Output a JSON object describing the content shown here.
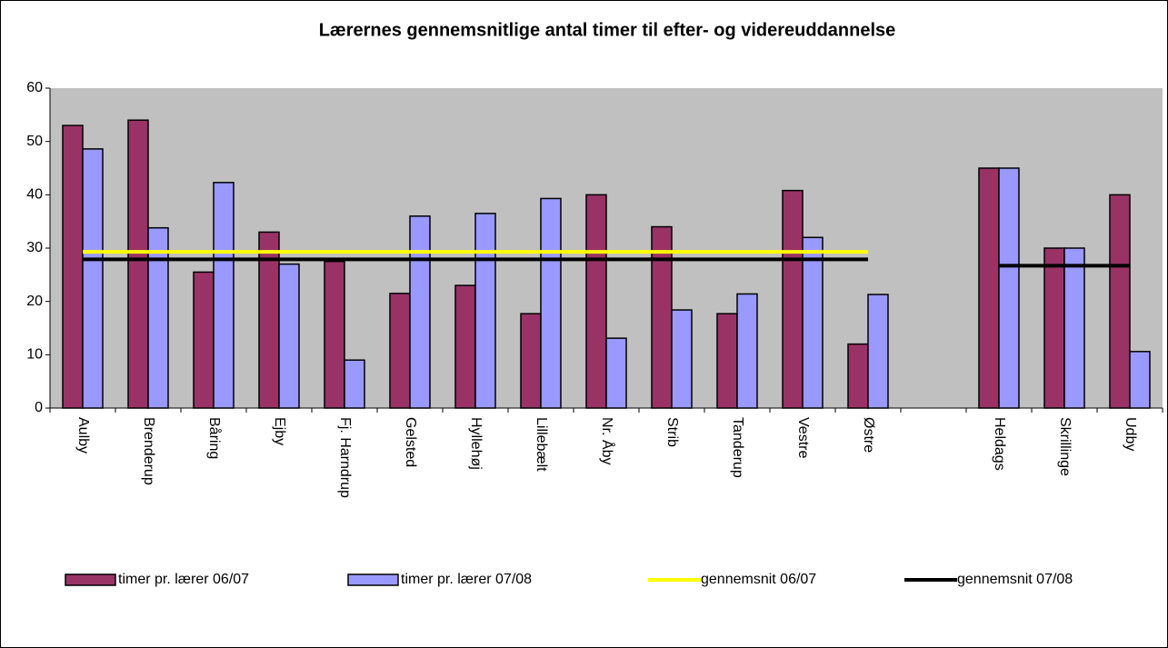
{
  "chart_data": {
    "type": "bar",
    "title": "Lærernes gennemsnitlige antal timer til efter- og videreuddannelse",
    "categories": [
      "Aulby",
      "Brenderup",
      "Båring",
      "Ejby",
      "Fj. Harndrup",
      "Gelsted",
      "Hyllehøj",
      "Lillebælt",
      "Nr. Åby",
      "Strib",
      "Tanderup",
      "Vestre",
      "Østre",
      null,
      "Heldags",
      "Skrillinge",
      "Udby"
    ],
    "series": [
      {
        "name": "timer pr. lærer 06/07",
        "type": "bar",
        "color": "#993366",
        "values": [
          53,
          54,
          25.5,
          33,
          27.5,
          21.5,
          23,
          17.7,
          40,
          34,
          17.7,
          40.8,
          12,
          null,
          45,
          30,
          40
        ]
      },
      {
        "name": "timer pr. lærer 07/08",
        "type": "bar",
        "color": "#9999ff",
        "values": [
          48.6,
          33.8,
          42.3,
          27,
          9,
          36,
          36.5,
          39.3,
          13.1,
          18.4,
          21.4,
          32,
          21.3,
          null,
          45,
          30,
          10.6
        ]
      },
      {
        "name": "gennemsnit 06/07",
        "type": "line",
        "color": "#ffff00",
        "values": [
          29.3,
          29.3,
          29.3,
          29.3,
          29.3,
          29.3,
          29.3,
          29.3,
          29.3,
          29.3,
          29.3,
          29.3,
          29.3,
          null,
          null,
          null,
          null
        ]
      },
      {
        "name": "gennemsnit 07/08",
        "type": "line",
        "color": "#000000",
        "values": [
          27.9,
          27.9,
          27.9,
          27.9,
          27.9,
          27.9,
          27.9,
          27.9,
          27.9,
          27.9,
          27.9,
          27.9,
          27.9,
          null,
          26.7,
          26.7,
          26.7
        ]
      }
    ],
    "ylim": [
      0,
      60
    ],
    "yticks": [
      0,
      10,
      20,
      30,
      40,
      50,
      60
    ],
    "legend": "bottom",
    "plot_background": "#c0c0c0"
  }
}
